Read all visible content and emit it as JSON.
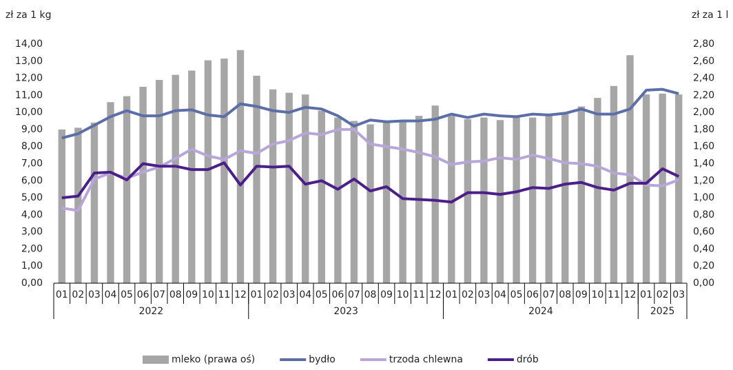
{
  "chart_data": {
    "type": "bar",
    "y_label": "zł za 1 kg",
    "y2_label": "zł za 1 l",
    "groups": [
      {
        "year": "2022",
        "months": [
          "01",
          "02",
          "03",
          "04",
          "05",
          "06",
          "07",
          "08",
          "09",
          "10",
          "11",
          "12"
        ]
      },
      {
        "year": "2023",
        "months": [
          "01",
          "02",
          "03",
          "04",
          "05",
          "06",
          "07",
          "08",
          "09",
          "10",
          "11",
          "12"
        ]
      },
      {
        "year": "2024",
        "months": [
          "01",
          "02",
          "03",
          "04",
          "05",
          "06",
          "07",
          "08",
          "09",
          "10",
          "11",
          "12"
        ]
      },
      {
        "year": "2025",
        "months": [
          "01",
          "02",
          "03"
        ]
      }
    ],
    "ylim": [
      0,
      14
    ],
    "yticks": [
      {
        "value": 0,
        "label": "0,00"
      },
      {
        "value": 1,
        "label": "1,00"
      },
      {
        "value": 2,
        "label": "2,00"
      },
      {
        "value": 3,
        "label": "3,00"
      },
      {
        "value": 4,
        "label": "4,00"
      },
      {
        "value": 5,
        "label": "5,00"
      },
      {
        "value": 6,
        "label": "6,00"
      },
      {
        "value": 7,
        "label": "7,00"
      },
      {
        "value": 8,
        "label": "8,00"
      },
      {
        "value": 9,
        "label": "9,00"
      },
      {
        "value": 10,
        "label": "10,00"
      },
      {
        "value": 11,
        "label": "11,00"
      },
      {
        "value": 12,
        "label": "12,00"
      },
      {
        "value": 13,
        "label": "13,00"
      },
      {
        "value": 14,
        "label": "14,00"
      }
    ],
    "y2lim": [
      0,
      2.8
    ],
    "y2ticks": [
      {
        "value": 0,
        "label": "0,00"
      },
      {
        "value": 0.2,
        "label": "0,20"
      },
      {
        "value": 0.4,
        "label": "0,40"
      },
      {
        "value": 0.6,
        "label": "0,60"
      },
      {
        "value": 0.8,
        "label": "0,80"
      },
      {
        "value": 1,
        "label": "1,00"
      },
      {
        "value": 1.2,
        "label": "1,20"
      },
      {
        "value": 1.4,
        "label": "1,40"
      },
      {
        "value": 1.6,
        "label": "1,60"
      },
      {
        "value": 1.8,
        "label": "1,80"
      },
      {
        "value": 2,
        "label": "2,00"
      },
      {
        "value": 2.2,
        "label": "2,20"
      },
      {
        "value": 2.4,
        "label": "2,40"
      },
      {
        "value": 2.6,
        "label": "2,60"
      },
      {
        "value": 2.8,
        "label": "2,80"
      }
    ],
    "series": [
      {
        "name": "mleko (prawa oś)",
        "type": "bar",
        "axis": "y2",
        "color": "#a6a6a6",
        "values": [
          1.8,
          1.82,
          1.88,
          2.12,
          2.19,
          2.3,
          2.38,
          2.44,
          2.49,
          2.61,
          2.63,
          2.73,
          2.43,
          2.27,
          2.23,
          2.21,
          2.02,
          1.94,
          1.9,
          1.86,
          1.88,
          1.9,
          1.96,
          2.08,
          1.96,
          1.92,
          1.94,
          1.91,
          1.94,
          1.94,
          1.96,
          1.98,
          2.07,
          2.17,
          2.31,
          2.67,
          2.21,
          2.22,
          2.21
        ]
      },
      {
        "name": "bydło",
        "type": "line",
        "color": "#5b6ea8",
        "values": [
          8.5,
          8.75,
          9.25,
          9.75,
          10.1,
          9.8,
          9.8,
          10.1,
          10.15,
          9.85,
          9.75,
          10.5,
          10.35,
          10.1,
          10.0,
          10.3,
          10.2,
          9.8,
          9.2,
          9.55,
          9.45,
          9.5,
          9.5,
          9.6,
          9.9,
          9.7,
          9.9,
          9.8,
          9.75,
          9.9,
          9.85,
          9.95,
          10.2,
          9.9,
          9.9,
          10.2,
          11.3,
          11.35,
          11.1
        ]
      },
      {
        "name": "trzoda chlewna",
        "type": "line",
        "color": "#b9a6d9",
        "values": [
          4.4,
          4.25,
          6.1,
          6.45,
          6.15,
          6.5,
          6.8,
          7.3,
          7.85,
          7.45,
          7.25,
          7.75,
          7.6,
          8.15,
          8.35,
          8.8,
          8.7,
          9.0,
          9.0,
          8.15,
          8.0,
          7.85,
          7.65,
          7.4,
          6.95,
          7.1,
          7.15,
          7.35,
          7.25,
          7.5,
          7.3,
          7.05,
          7.0,
          6.85,
          6.45,
          6.35,
          5.75,
          5.7,
          6.05
        ]
      },
      {
        "name": "drób",
        "type": "line",
        "color": "#4b1f8a",
        "values": [
          5.0,
          5.1,
          6.45,
          6.5,
          6.05,
          7.0,
          6.85,
          6.85,
          6.65,
          6.65,
          7.05,
          5.75,
          6.85,
          6.8,
          6.85,
          5.8,
          6.0,
          5.5,
          6.1,
          5.4,
          5.65,
          4.95,
          4.9,
          4.85,
          4.75,
          5.3,
          5.3,
          5.2,
          5.35,
          5.6,
          5.55,
          5.8,
          5.9,
          5.6,
          5.45,
          5.85,
          5.85,
          6.7,
          6.25
        ]
      }
    ]
  }
}
